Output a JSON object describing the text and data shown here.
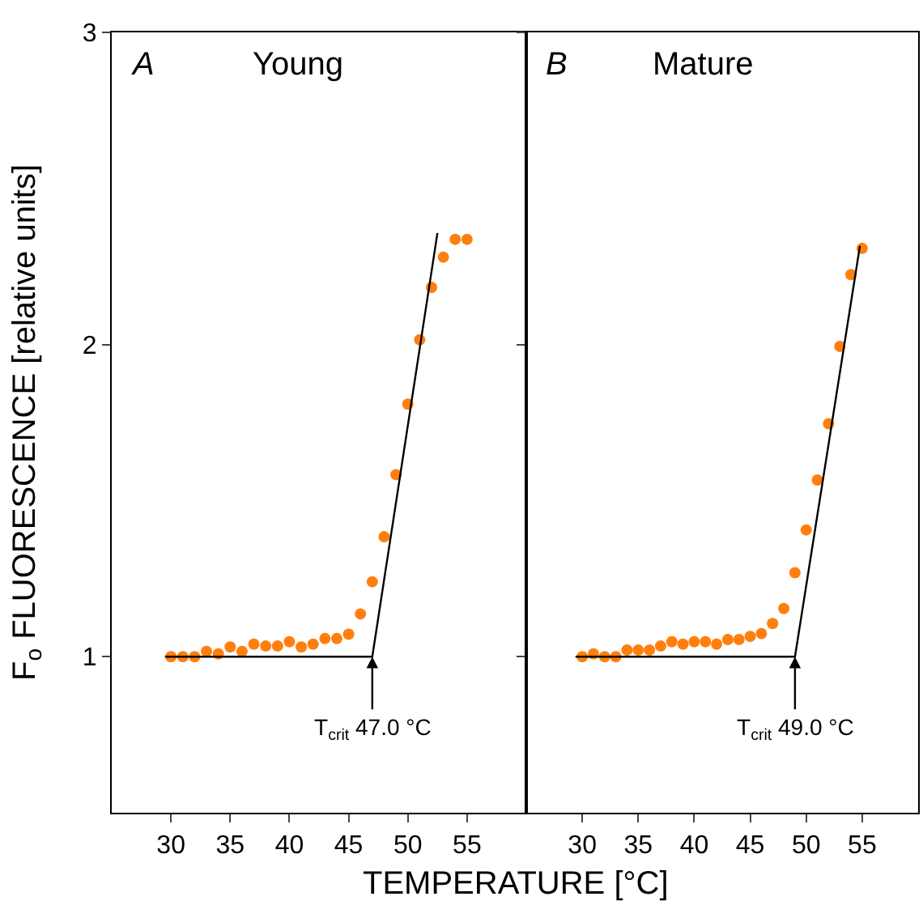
{
  "chart_data": [
    {
      "type": "scatter",
      "title": "Young",
      "ylabel": "F$_{o}$ FLUORESCENCE [relative units]",
      "xlim": [
        25,
        60
      ],
      "xticks": [
        30,
        35,
        40,
        45,
        50,
        55
      ],
      "ylim": [
        0.5,
        3
      ],
      "yticks": [
        1,
        2,
        3
      ],
      "grid": false,
      "marker": "circle",
      "annotations": [
        "A",
        {
          "text": "T$_{crit}$ 47.0 °C",
          "x": 47,
          "y": 1.0
        }
      ],
      "series": [
        {
          "color": "#ff7f0e",
          "x": [
            30,
            31,
            32,
            33,
            34,
            35,
            36,
            37,
            38,
            39,
            40,
            41,
            42,
            43,
            44,
            45,
            46,
            47,
            48,
            49,
            50,
            51,
            52,
            53,
            54,
            55
          ],
          "values": [
            1.0,
            1.0,
            1.0,
            1.017,
            1.009,
            1.031,
            1.017,
            1.04,
            1.034,
            1.034,
            1.048,
            1.031,
            1.04,
            1.058,
            1.058,
            1.072,
            1.137,
            1.24,
            1.384,
            1.583,
            1.809,
            2.015,
            2.183,
            2.28,
            2.337,
            2.337
          ]
        },
        {
          "type": "line",
          "color": "#000000",
          "marker": "none",
          "line_style": "solid",
          "x": [
            29.5,
            47,
            52.5
          ],
          "values": [
            1.0,
            1.0,
            2.357
          ]
        }
      ]
    },
    {
      "type": "scatter",
      "title": "Mature",
      "xlabel": "TEMPERATURE [°C]",
      "xlim": [
        25,
        60
      ],
      "xticks": [
        30,
        35,
        40,
        45,
        50,
        55
      ],
      "ylim": [
        0.5,
        3
      ],
      "yticks": [
        {
          "value": 1,
          "label": null
        },
        {
          "value": 2,
          "label": null
        },
        {
          "value": 3,
          "label": null
        }
      ],
      "tick_labels": "x",
      "grid": false,
      "marker": "circle",
      "annotations": [
        "B",
        {
          "text": "T$_{crit}$ 49.0 °C",
          "x": 49,
          "y": 1.0
        }
      ],
      "series": [
        {
          "color": "#ff7f0e",
          "x": [
            30,
            31,
            32,
            33,
            34,
            35,
            36,
            37,
            38,
            39,
            40,
            41,
            42,
            43,
            44,
            45,
            46,
            47,
            48,
            49,
            50,
            51,
            52,
            53,
            54,
            55
          ],
          "values": [
            1.0,
            1.009,
            1.0,
            1.0,
            1.021,
            1.021,
            1.021,
            1.034,
            1.048,
            1.04,
            1.048,
            1.048,
            1.04,
            1.055,
            1.055,
            1.065,
            1.074,
            1.106,
            1.154,
            1.269,
            1.406,
            1.566,
            1.746,
            1.994,
            2.224,
            2.308
          ]
        },
        {
          "type": "line",
          "color": "#000000",
          "marker": "none",
          "line_style": "solid",
          "x": [
            29.4,
            49,
            54.8
          ],
          "values": [
            1.0,
            1.0,
            2.316
          ]
        }
      ]
    }
  ]
}
